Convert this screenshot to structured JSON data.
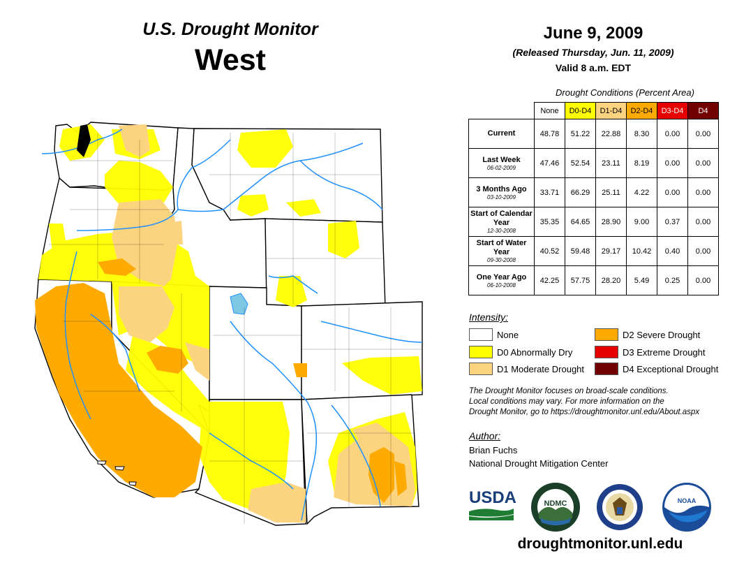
{
  "header": {
    "title": "U.S. Drought Monitor",
    "region": "West",
    "date": "June 9, 2009",
    "released": "(Released Thursday, Jun. 11, 2009)",
    "valid": "Valid 8 a.m. EDT"
  },
  "table": {
    "caption": "Drought Conditions (Percent Area)",
    "columns": [
      "None",
      "D0-D4",
      "D1-D4",
      "D2-D4",
      "D3-D4",
      "D4"
    ],
    "column_colors": [
      "#ffffff",
      "#ffff00",
      "#fcd37f",
      "#ffaa00",
      "#e60000",
      "#730000"
    ],
    "rows": [
      {
        "label": "Current",
        "date": "",
        "values": [
          "48.78",
          "51.22",
          "22.88",
          "8.30",
          "0.00",
          "0.00"
        ]
      },
      {
        "label": "Last Week",
        "date": "06-02-2009",
        "values": [
          "47.46",
          "52.54",
          "23.11",
          "8.19",
          "0.00",
          "0.00"
        ]
      },
      {
        "label": "3 Months Ago",
        "date": "03-10-2009",
        "values": [
          "33.71",
          "66.29",
          "25.11",
          "4.22",
          "0.00",
          "0.00"
        ]
      },
      {
        "label": "Start of Calendar Year",
        "date": "12-30-2008",
        "values": [
          "35.35",
          "64.65",
          "28.90",
          "9.00",
          "0.37",
          "0.00"
        ]
      },
      {
        "label": "Start of Water Year",
        "date": "09-30-2008",
        "values": [
          "40.52",
          "59.48",
          "29.17",
          "10.42",
          "0.40",
          "0.00"
        ]
      },
      {
        "label": "One Year Ago",
        "date": "06-10-2008",
        "values": [
          "42.25",
          "57.75",
          "28.20",
          "5.49",
          "0.25",
          "0.00"
        ]
      }
    ]
  },
  "legend": {
    "title": "Intensity:",
    "items": [
      {
        "label": "None",
        "color": "#ffffff"
      },
      {
        "label": "D0 Abnormally Dry",
        "color": "#ffff00"
      },
      {
        "label": "D1 Moderate Drought",
        "color": "#fcd37f"
      },
      {
        "label": "D2 Severe Drought",
        "color": "#ffaa00"
      },
      {
        "label": "D3 Extreme Drought",
        "color": "#e60000"
      },
      {
        "label": "D4 Exceptional Drought",
        "color": "#730000"
      }
    ]
  },
  "note": {
    "line1": "The Drought Monitor focuses on broad-scale conditions.",
    "line2": "Local conditions may vary. For more information on the",
    "line3": "Drought Monitor, go to https://droughtmonitor.unl.edu/About.aspx"
  },
  "author": {
    "title": "Author:",
    "name": "Brian Fuchs",
    "org": "National Drought Mitigation Center"
  },
  "logos": {
    "usda": "USDA",
    "ndmc": "NDMC",
    "noaa": "NOAA"
  },
  "footer": {
    "site": "droughtmonitor.unl.edu"
  }
}
